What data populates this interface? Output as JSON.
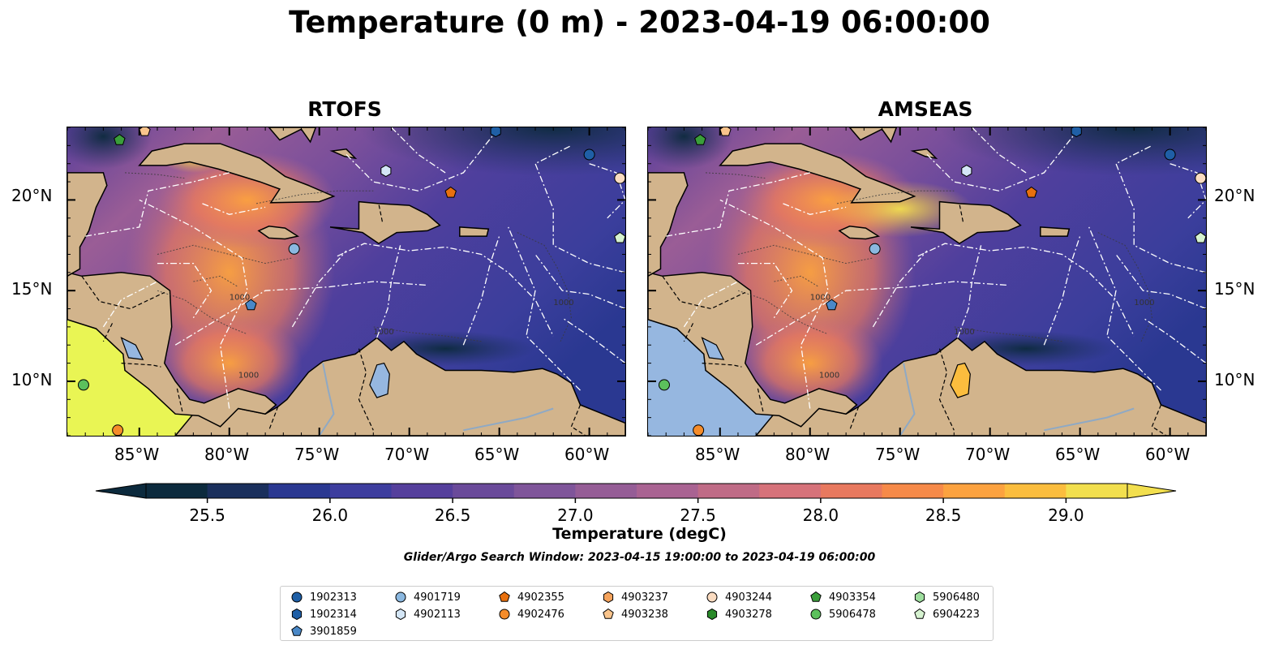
{
  "title": "Temperature (0 m) - 2023-04-19 06:00:00",
  "panels": [
    {
      "id": "rtofs",
      "title": "RTOFS"
    },
    {
      "id": "amseas",
      "title": "AMSEAS"
    }
  ],
  "axes": {
    "lon_ticks": [
      "85°W",
      "80°W",
      "75°W",
      "70°W",
      "65°W",
      "60°W"
    ],
    "lat_ticks": [
      "20°N",
      "15°N",
      "10°N"
    ],
    "extent": {
      "lon": [
        -89,
        -58
      ],
      "lat": [
        7,
        24
      ]
    }
  },
  "colorbar": {
    "label": "Temperature (degC)",
    "ticks": [
      "25.5",
      "26.0",
      "26.5",
      "27.0",
      "27.5",
      "28.0",
      "28.5",
      "29.0"
    ],
    "range": [
      25.25,
      29.25
    ],
    "colors": [
      "#0c2a3d",
      "#1a2f5c",
      "#2a3891",
      "#3d3d9e",
      "#553f9c",
      "#6a4a9a",
      "#7f559a",
      "#955d96",
      "#a96392",
      "#bf6b86",
      "#d6727a",
      "#e8795f",
      "#f68a49",
      "#fca23f",
      "#fbbd3e",
      "#f2df4e"
    ],
    "extend": "both"
  },
  "contour_labels": [
    "1000",
    "1000",
    "1000",
    "1000"
  ],
  "search_window": "Glider/Argo Search Window: 2023-04-15 19:00:00 to 2023-04-19 06:00:00",
  "legend": [
    {
      "id": "1902313",
      "marker": "circle",
      "color": "#1f5fa6"
    },
    {
      "id": "1902314",
      "marker": "hexagon",
      "color": "#1f5fa6"
    },
    {
      "id": "3901859",
      "marker": "pentagon",
      "color": "#4a88c7"
    },
    {
      "id": "4901719",
      "marker": "circle",
      "color": "#8bb8e0"
    },
    {
      "id": "4902113",
      "marker": "hexagon",
      "color": "#d4e6f6"
    },
    {
      "id": "4902355",
      "marker": "pentagon",
      "color": "#e8700e"
    },
    {
      "id": "4902476",
      "marker": "circle",
      "color": "#f58c2a"
    },
    {
      "id": "4903237",
      "marker": "hexagon",
      "color": "#f5a35c"
    },
    {
      "id": "4903238",
      "marker": "pentagon",
      "color": "#f9c48c"
    },
    {
      "id": "4903244",
      "marker": "circle",
      "color": "#fbdcc1"
    },
    {
      "id": "4903278",
      "marker": "hexagon",
      "color": "#2a8a2a"
    },
    {
      "id": "4903354",
      "marker": "pentagon",
      "color": "#3a9e3a"
    },
    {
      "id": "5906478",
      "marker": "circle",
      "color": "#5cc05c"
    },
    {
      "id": "5906480",
      "marker": "hexagon",
      "color": "#9ede9e"
    },
    {
      "id": "6904223",
      "marker": "pentagon",
      "color": "#d6f2d0"
    }
  ],
  "floats": [
    {
      "id": "1902313",
      "lon": -60.0,
      "lat": 22.5
    },
    {
      "id": "1902314",
      "lon": -65.2,
      "lat": 23.8
    },
    {
      "id": "4901719",
      "lon": -76.4,
      "lat": 17.3
    },
    {
      "id": "4902113",
      "lon": -71.3,
      "lat": 21.6
    },
    {
      "id": "4902355",
      "lon": -67.7,
      "lat": 20.4
    },
    {
      "id": "4902476",
      "lon": -86.2,
      "lat": 7.3
    },
    {
      "id": "4903238",
      "lon": -84.7,
      "lat": 23.8
    },
    {
      "id": "4903244",
      "lon": -58.3,
      "lat": 21.2
    },
    {
      "id": "4903354",
      "lon": -86.1,
      "lat": 23.3
    },
    {
      "id": "5906478",
      "lon": -88.1,
      "lat": 9.8
    },
    {
      "id": "6904223",
      "lon": -58.3,
      "lat": 17.9
    },
    {
      "id": "3901859",
      "lon": -78.8,
      "lat": 14.2
    }
  ]
}
